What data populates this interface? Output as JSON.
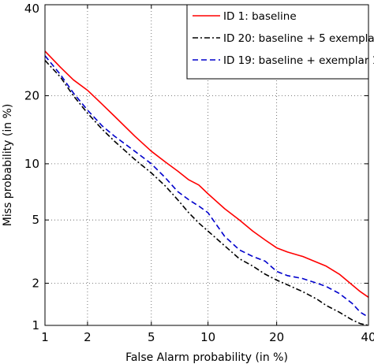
{
  "chart_data": {
    "type": "line",
    "xlabel": "False Alarm probability (in %)",
    "ylabel": "Miss probability (in %)",
    "x_scale": "normal-deviate",
    "y_scale": "normal-deviate",
    "xlim": [
      1,
      40
    ],
    "ylim": [
      1,
      40
    ],
    "x_ticks": [
      1,
      2,
      5,
      10,
      20,
      40
    ],
    "y_ticks": [
      1,
      2,
      5,
      10,
      20,
      40
    ],
    "x_tick_labels": [
      "1",
      "2",
      "5",
      "10",
      "20",
      "40"
    ],
    "y_tick_labels": [
      "1",
      "2",
      "5",
      "10",
      "20",
      "40"
    ],
    "grid": true,
    "legend_position": "top-right",
    "series": [
      {
        "name": "ID 1: baseline",
        "color": "#ff0000",
        "dash": "solid",
        "points": [
          [
            1.0,
            29.0
          ],
          [
            1.3,
            25.5
          ],
          [
            1.6,
            23.0
          ],
          [
            2.0,
            21.0
          ],
          [
            2.5,
            18.5
          ],
          [
            3.0,
            16.5
          ],
          [
            4.0,
            13.5
          ],
          [
            5.0,
            11.5
          ],
          [
            6.0,
            10.2
          ],
          [
            7.0,
            9.2
          ],
          [
            8.0,
            8.3
          ],
          [
            9.0,
            7.8
          ],
          [
            10.0,
            7.0
          ],
          [
            12.0,
            5.8
          ],
          [
            14.0,
            5.0
          ],
          [
            16.0,
            4.3
          ],
          [
            18.0,
            3.8
          ],
          [
            20.0,
            3.4
          ],
          [
            22.0,
            3.2
          ],
          [
            25.0,
            3.0
          ],
          [
            28.0,
            2.75
          ],
          [
            30.0,
            2.6
          ],
          [
            33.0,
            2.3
          ],
          [
            36.0,
            1.95
          ],
          [
            38.0,
            1.75
          ],
          [
            40.0,
            1.6
          ]
        ]
      },
      {
        "name": "ID 20: baseline + 5 exemplars",
        "color": "#000000",
        "dash": "dashdot",
        "points": [
          [
            1.0,
            27.0
          ],
          [
            1.3,
            23.5
          ],
          [
            1.6,
            20.0
          ],
          [
            2.0,
            17.0
          ],
          [
            2.5,
            14.5
          ],
          [
            3.0,
            12.8
          ],
          [
            4.0,
            10.5
          ],
          [
            5.0,
            9.0
          ],
          [
            6.0,
            7.7
          ],
          [
            7.0,
            6.5
          ],
          [
            8.0,
            5.5
          ],
          [
            9.0,
            4.8
          ],
          [
            10.0,
            4.3
          ],
          [
            12.0,
            3.5
          ],
          [
            14.0,
            2.9
          ],
          [
            16.0,
            2.6
          ],
          [
            18.0,
            2.3
          ],
          [
            20.0,
            2.1
          ],
          [
            22.0,
            1.95
          ],
          [
            25.0,
            1.75
          ],
          [
            28.0,
            1.55
          ],
          [
            30.0,
            1.4
          ],
          [
            33.0,
            1.25
          ],
          [
            36.0,
            1.1
          ],
          [
            38.0,
            1.03
          ],
          [
            40.0,
            1.0
          ]
        ]
      },
      {
        "name": "ID 19: baseline + exemplar 1",
        "color": "#0000cc",
        "dash": "dashed",
        "points": [
          [
            1.0,
            28.0
          ],
          [
            1.3,
            24.0
          ],
          [
            1.6,
            20.5
          ],
          [
            2.0,
            17.5
          ],
          [
            2.5,
            15.0
          ],
          [
            3.0,
            13.5
          ],
          [
            4.0,
            11.5
          ],
          [
            5.0,
            10.0
          ],
          [
            6.0,
            8.5
          ],
          [
            7.0,
            7.2
          ],
          [
            8.0,
            6.5
          ],
          [
            9.0,
            6.0
          ],
          [
            10.0,
            5.5
          ],
          [
            12.0,
            4.0
          ],
          [
            14.0,
            3.3
          ],
          [
            16.0,
            3.0
          ],
          [
            18.0,
            2.8
          ],
          [
            20.0,
            2.4
          ],
          [
            22.0,
            2.25
          ],
          [
            25.0,
            2.15
          ],
          [
            28.0,
            2.0
          ],
          [
            30.0,
            1.9
          ],
          [
            33.0,
            1.7
          ],
          [
            36.0,
            1.45
          ],
          [
            38.0,
            1.25
          ],
          [
            40.0,
            1.15
          ]
        ]
      }
    ]
  }
}
